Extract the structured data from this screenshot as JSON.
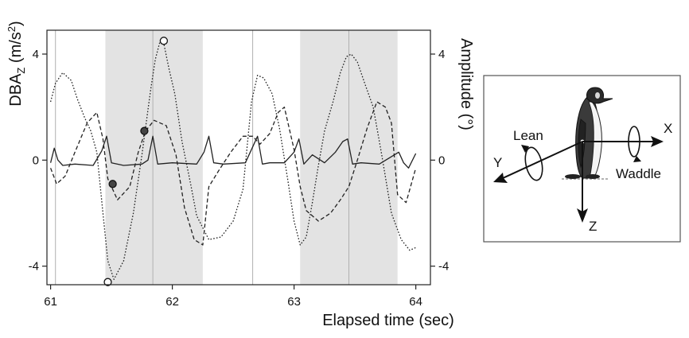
{
  "chart_data": {
    "type": "line",
    "xlabel": "Elapsed time (sec)",
    "ylabel_left_main": "DBA",
    "ylabel_left_sub": "Z",
    "ylabel_left_unit": " (m/s",
    "ylabel_left_sup": "2",
    "ylabel_left_close": ")",
    "ylabel_right": "Amplitude (°)",
    "xlim": [
      60.97,
      64.12
    ],
    "ylim": [
      -4.7,
      4.9
    ],
    "xticks": [
      {
        "value": 61,
        "label": "61"
      },
      {
        "value": 62,
        "label": "62"
      },
      {
        "value": 63,
        "label": "63"
      },
      {
        "value": 64,
        "label": "64"
      }
    ],
    "yticks_left": [
      {
        "value": 4,
        "label": "4"
      },
      {
        "value": 0,
        "label": "0"
      },
      {
        "value": -4,
        "label": "-4"
      }
    ],
    "yticks_right": [
      {
        "value": 4,
        "label": "4"
      },
      {
        "value": 0,
        "label": "0"
      },
      {
        "value": -4,
        "label": "-4"
      }
    ],
    "shaded_regions": [
      [
        61.45,
        62.25
      ],
      [
        63.05,
        63.85
      ]
    ],
    "vertical_lines": [
      61.04,
      61.84,
      62.66,
      63.45
    ],
    "series": [
      {
        "style": "solid",
        "x": [
          61.0,
          61.03,
          61.06,
          61.1,
          61.2,
          61.35,
          61.42,
          61.46,
          61.5,
          61.6,
          61.75,
          61.8,
          61.84,
          61.88,
          62.0,
          62.2,
          62.26,
          62.3,
          62.34,
          62.42,
          62.6,
          62.66,
          62.7,
          62.74,
          62.8,
          62.92,
          63.0,
          63.04,
          63.08,
          63.15,
          63.25,
          63.34,
          63.4,
          63.44,
          63.48,
          63.55,
          63.7,
          63.86,
          63.9,
          63.94,
          64.0
        ],
        "y": [
          -0.1,
          0.45,
          0.0,
          -0.2,
          -0.15,
          -0.2,
          0.35,
          0.9,
          -0.1,
          -0.2,
          -0.15,
          0.0,
          0.9,
          -0.15,
          -0.1,
          -0.15,
          0.3,
          0.9,
          -0.1,
          -0.15,
          -0.1,
          0.5,
          0.9,
          -0.15,
          -0.1,
          -0.1,
          0.3,
          0.8,
          -0.15,
          0.2,
          -0.1,
          0.3,
          0.7,
          0.8,
          -0.15,
          -0.1,
          -0.15,
          0.3,
          -0.1,
          -0.3,
          0.25
        ]
      },
      {
        "style": "dashed",
        "x": [
          61.0,
          61.05,
          61.12,
          61.2,
          61.3,
          61.38,
          61.43,
          61.47,
          61.55,
          61.65,
          61.72,
          61.78,
          61.85,
          61.95,
          62.03,
          62.1,
          62.18,
          62.25,
          62.3,
          62.38,
          62.48,
          62.58,
          62.66,
          62.72,
          62.8,
          62.87,
          62.92,
          63.0,
          63.05,
          63.1,
          63.2,
          63.3,
          63.38,
          63.45,
          63.52,
          63.6,
          63.68,
          63.75,
          63.8,
          63.85,
          63.92,
          64.0
        ],
        "y": [
          -0.3,
          -0.9,
          -0.6,
          0.3,
          1.4,
          1.8,
          0.8,
          -0.7,
          -1.5,
          -1.0,
          0.3,
          1.1,
          1.5,
          1.3,
          0.2,
          -1.8,
          -3.0,
          -3.2,
          -1.0,
          -0.4,
          0.3,
          0.9,
          0.9,
          0.6,
          1.0,
          1.8,
          2.0,
          0.4,
          -1.0,
          -1.9,
          -2.3,
          -2.0,
          -1.5,
          -1.0,
          0.0,
          1.2,
          2.2,
          2.0,
          1.4,
          -1.3,
          -1.6,
          -0.3
        ]
      },
      {
        "style": "dotted",
        "x": [
          61.0,
          61.04,
          61.1,
          61.17,
          61.22,
          61.28,
          61.33,
          61.38,
          61.43,
          61.47,
          61.52,
          61.6,
          61.68,
          61.75,
          61.82,
          61.86,
          61.9,
          61.93,
          61.97,
          62.02,
          62.08,
          62.15,
          62.2,
          62.3,
          62.4,
          62.5,
          62.58,
          62.65,
          62.7,
          62.75,
          62.82,
          62.88,
          62.95,
          63.0,
          63.05,
          63.1,
          63.15,
          63.2,
          63.25,
          63.32,
          63.38,
          63.43,
          63.47,
          63.52,
          63.58,
          63.65,
          63.72,
          63.8,
          63.88,
          63.95,
          64.0
        ],
        "y": [
          2.2,
          2.9,
          3.3,
          3.0,
          2.3,
          1.6,
          1.1,
          0.3,
          -2.0,
          -3.8,
          -4.5,
          -3.8,
          -2.0,
          0.2,
          2.6,
          3.8,
          4.5,
          4.4,
          3.5,
          2.5,
          0.7,
          -0.9,
          -2.1,
          -3.0,
          -2.9,
          -2.3,
          -1.1,
          2.2,
          3.2,
          3.1,
          2.5,
          1.2,
          -0.8,
          -2.3,
          -3.2,
          -2.9,
          -1.6,
          -0.2,
          1.1,
          2.2,
          3.3,
          3.9,
          4.0,
          3.7,
          2.9,
          2.0,
          0.2,
          -2.0,
          -3.0,
          -3.4,
          -3.3
        ]
      }
    ],
    "markers": [
      {
        "x": 61.47,
        "y": -4.6,
        "fill": "open"
      },
      {
        "x": 61.51,
        "y": -0.9,
        "fill": "filled"
      },
      {
        "x": 61.77,
        "y": 1.1,
        "fill": "filled"
      },
      {
        "x": 61.93,
        "y": 4.5,
        "fill": "open"
      }
    ]
  },
  "diagram": {
    "label_lean": "Lean",
    "label_waddle": "Waddle",
    "axis_x": "X",
    "axis_y": "Y",
    "axis_z": "Z"
  },
  "colors": {
    "shade": "#e3e3e3",
    "vline": "#b0b0b0",
    "line": "#222222",
    "frame": "#222222",
    "marker_fill": "#444444"
  }
}
